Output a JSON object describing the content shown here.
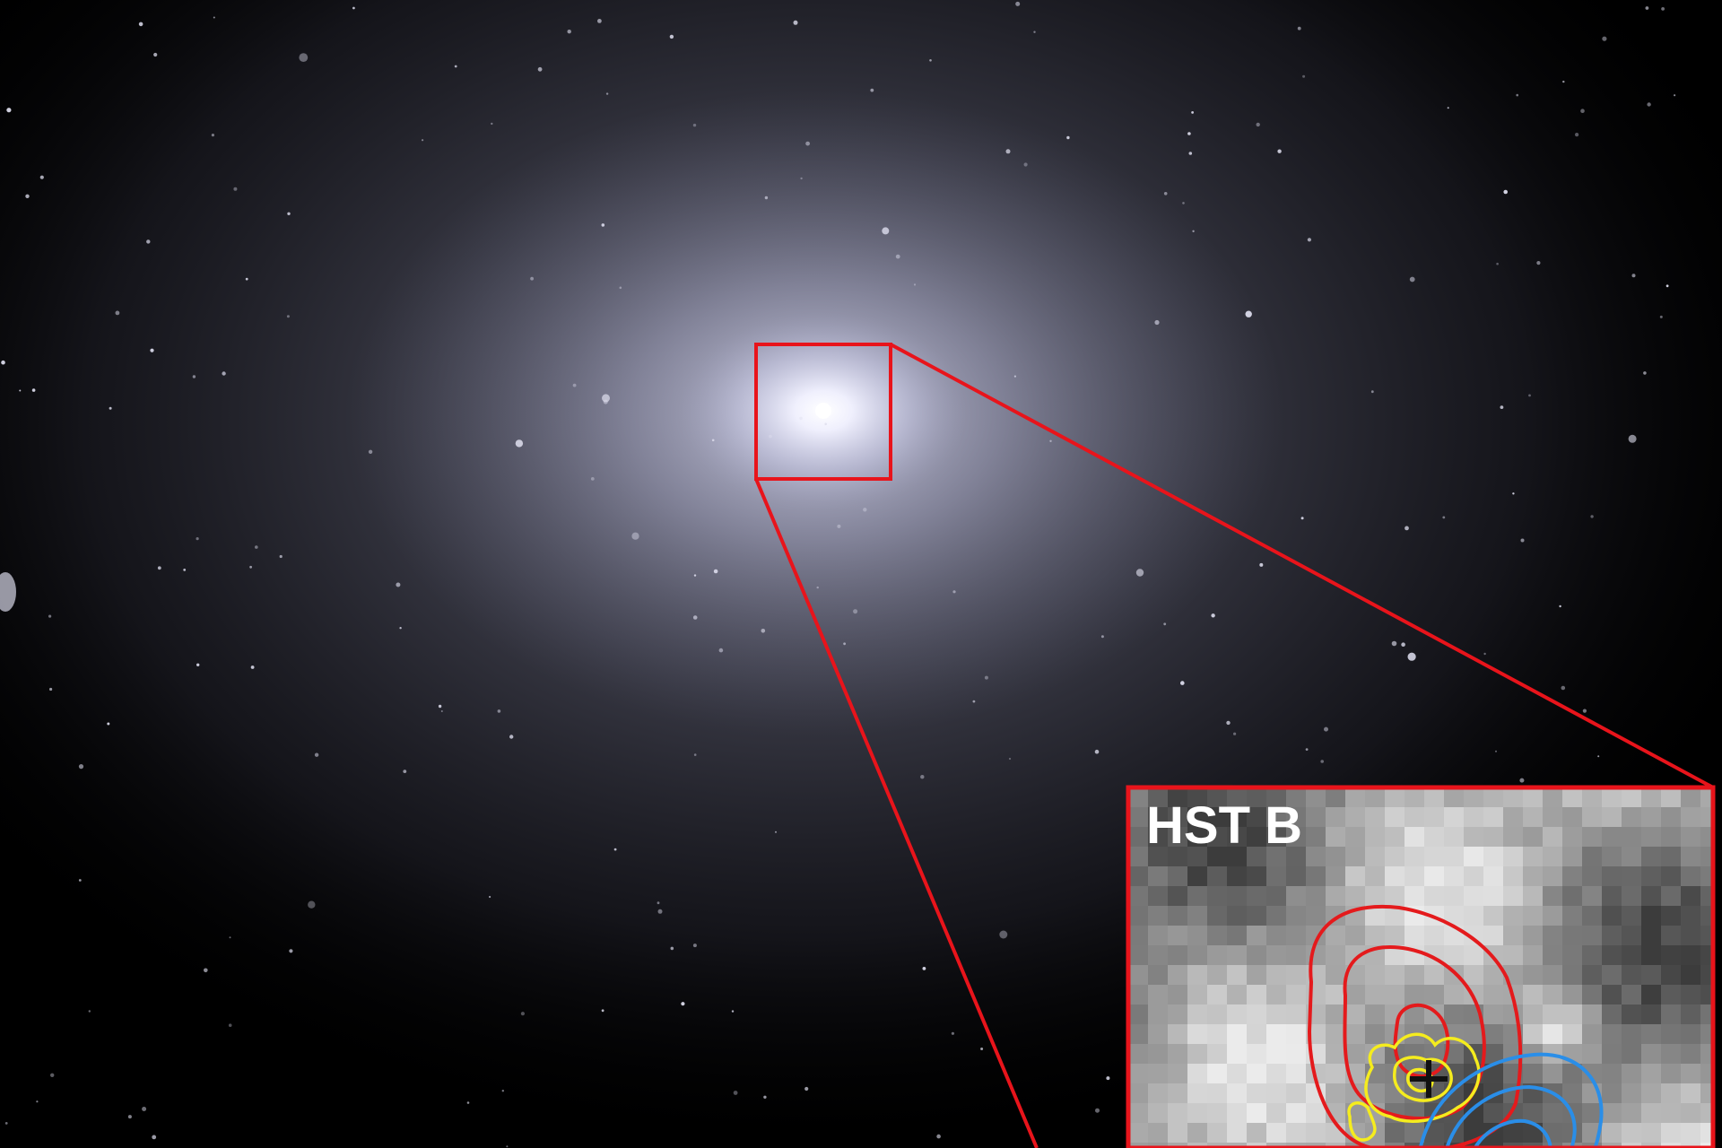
{
  "image": {
    "description_kind": "astronomical photograph",
    "background_color": "#000000",
    "galaxy_glow_color": "#c9cbe4",
    "zoom_box_color": "#e8141b"
  },
  "inset": {
    "label": "HST B",
    "label_color": "#ffffff",
    "contour_colors": {
      "red": "#e41a1c",
      "yellow": "#f5ec1e",
      "blue": "#2a8ee8"
    },
    "marker": "cross-marker"
  }
}
